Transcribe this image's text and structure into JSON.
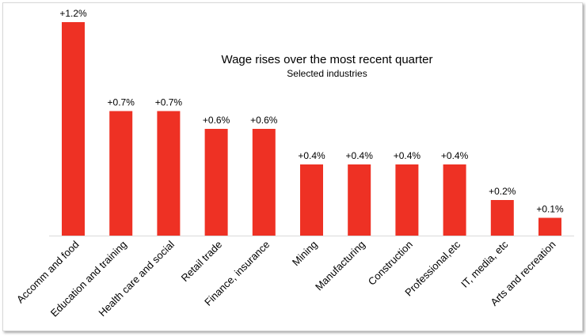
{
  "chart_data": {
    "type": "bar",
    "title": "Wage rises over the most recent quarter",
    "subtitle": "Selected industries",
    "xlabel": "",
    "ylabel": "",
    "ylim": [
      0,
      1.2
    ],
    "grid": false,
    "categories": [
      "Accomm and food",
      "Education and training",
      "Health care and social",
      "Retail trade",
      "Finance, insurance",
      "Mining",
      "Manufacturing",
      "Construction",
      "Professional,etc",
      "IT, media, etc",
      "Arts and recreation"
    ],
    "values": [
      1.2,
      0.7,
      0.7,
      0.6,
      0.6,
      0.4,
      0.4,
      0.4,
      0.4,
      0.2,
      0.1
    ],
    "data_labels": [
      "+1.2%",
      "+0.7%",
      "+0.7%",
      "+0.6%",
      "+0.6%",
      "+0.4%",
      "+0.4%",
      "+0.4%",
      "+0.4%",
      "+0.2%",
      "+0.1%"
    ],
    "bar_color": "#ee3124"
  }
}
